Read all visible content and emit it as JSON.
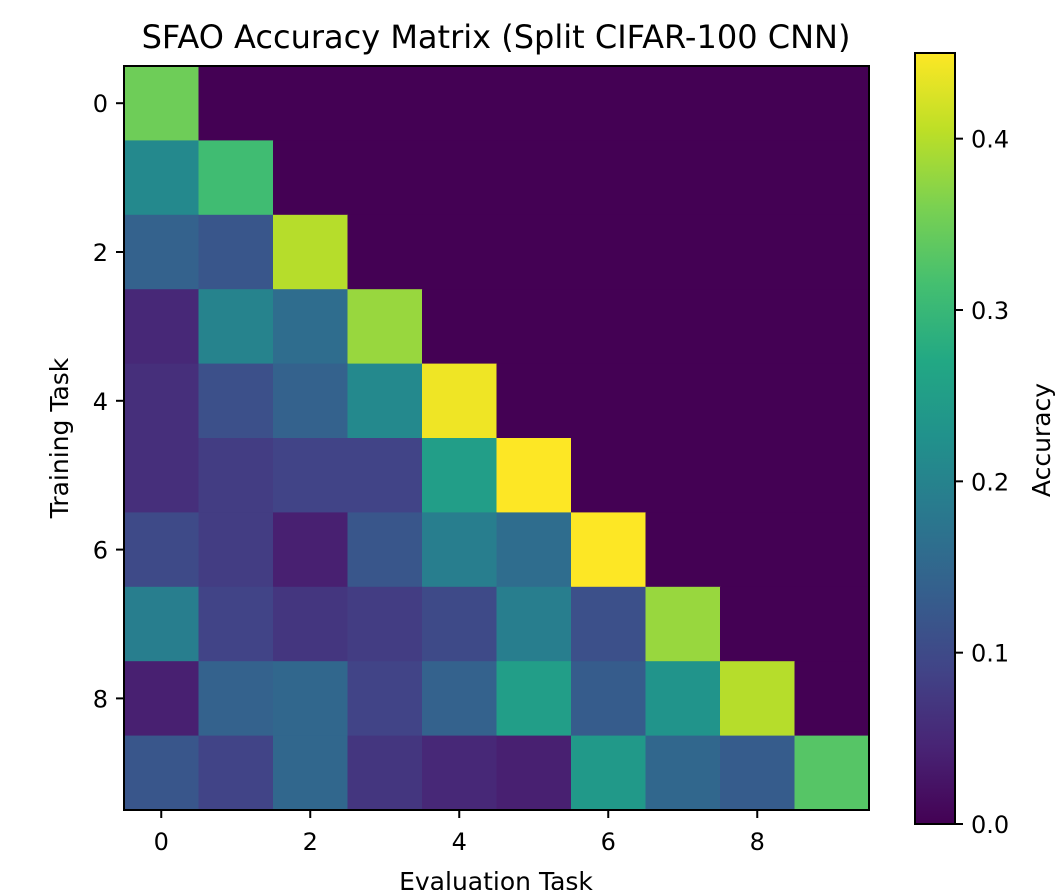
{
  "chart_data": {
    "type": "heatmap",
    "title": "SFAO Accuracy Matrix (Split CIFAR-100 CNN)",
    "xlabel": "Evaluation Task",
    "ylabel": "Training Task",
    "x_ticks": [
      "0",
      "2",
      "4",
      "6",
      "8"
    ],
    "y_ticks": [
      "0",
      "2",
      "4",
      "6",
      "8"
    ],
    "colorbar": {
      "label": "Accuracy",
      "range": [
        0.0,
        0.45
      ],
      "ticks": [
        "0.0",
        "0.1",
        "0.2",
        "0.3",
        "0.4"
      ],
      "colormap": "viridis"
    },
    "grid": false,
    "values": [
      [
        0.35,
        0,
        0,
        0,
        0,
        0,
        0,
        0,
        0,
        0
      ],
      [
        0.21,
        0.31,
        0,
        0,
        0,
        0,
        0,
        0,
        0,
        0
      ],
      [
        0.14,
        0.12,
        0.4,
        0,
        0,
        0,
        0,
        0,
        0,
        0
      ],
      [
        0.05,
        0.2,
        0.16,
        0.38,
        0,
        0,
        0,
        0,
        0,
        0
      ],
      [
        0.06,
        0.11,
        0.14,
        0.21,
        0.44,
        0,
        0,
        0,
        0,
        0
      ],
      [
        0.06,
        0.08,
        0.09,
        0.09,
        0.25,
        0.45,
        0,
        0,
        0,
        0
      ],
      [
        0.1,
        0.08,
        0.04,
        0.12,
        0.19,
        0.16,
        0.45,
        0,
        0,
        0
      ],
      [
        0.19,
        0.09,
        0.07,
        0.08,
        0.1,
        0.19,
        0.11,
        0.38,
        0,
        0
      ],
      [
        0.04,
        0.14,
        0.15,
        0.09,
        0.14,
        0.25,
        0.13,
        0.23,
        0.4,
        0
      ],
      [
        0.12,
        0.09,
        0.15,
        0.07,
        0.05,
        0.04,
        0.24,
        0.15,
        0.13,
        0.33
      ]
    ]
  }
}
